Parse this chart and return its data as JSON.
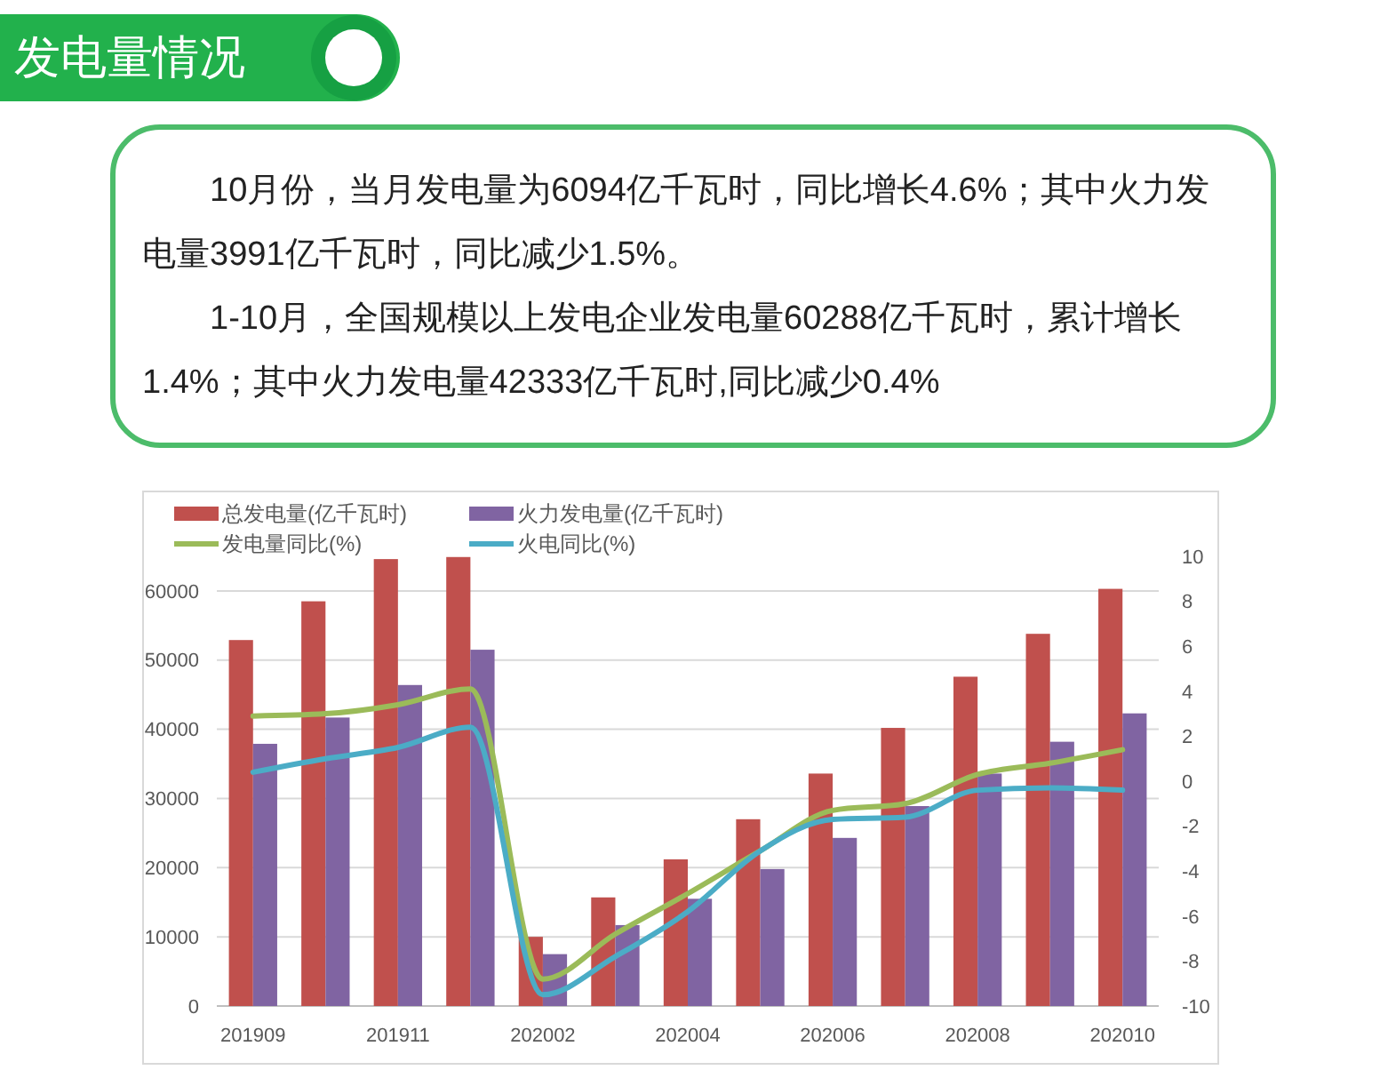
{
  "chart_data": {
    "type": "bar",
    "title": "发电量情况",
    "annotations": [
      "10月份，当月发电量为6094亿千瓦时，同比增长4.6%；其中火力发电量3991亿千瓦时，同比减少1.5%。",
      "1-10月，全国规模以上发电企业发电量60288亿千瓦时，累计增长1.4%；其中火力发电量42333亿千瓦时,同比减少0.4%"
    ],
    "categories": [
      "201909",
      null,
      "201911",
      null,
      "202002",
      null,
      "202004",
      null,
      "202006",
      null,
      "202008",
      null,
      "202010"
    ],
    "series": [
      {
        "name": "总发电量(亿千瓦时)",
        "color": "#c0504d",
        "values": [
          52900,
          58500,
          64600,
          64900,
          10000,
          15700,
          21200,
          27000,
          33600,
          40200,
          47600,
          53800,
          60300
        ]
      },
      {
        "name": "火力发电量(亿千瓦时)",
        "color": "#8064a2",
        "values": [
          37900,
          41700,
          46400,
          51500,
          7500,
          11700,
          15500,
          19800,
          24300,
          28900,
          33600,
          38200,
          42300
        ]
      },
      {
        "name": "发电量同比(%)",
        "type": "line",
        "axis": "y2",
        "color": "#9bbb59",
        "values": [
          2.9,
          3.0,
          3.4,
          4.1,
          -8.8,
          -6.8,
          -5.0,
          -3.1,
          -1.3,
          -1.0,
          0.3,
          0.8,
          1.4
        ]
      },
      {
        "name": "火电同比(%)",
        "type": "line",
        "axis": "y2",
        "color": "#4bacc6",
        "values": [
          0.4,
          1.0,
          1.5,
          2.4,
          -9.5,
          -7.8,
          -5.8,
          -3.1,
          -1.7,
          -1.6,
          -0.4,
          -0.3,
          -0.4
        ]
      }
    ],
    "ylim": [
      0,
      65000
    ],
    "yticks": [
      0,
      10000,
      20000,
      30000,
      40000,
      50000,
      60000
    ],
    "y2lim": [
      -10,
      10
    ],
    "y2ticks": [
      -10,
      -8,
      -6,
      -4,
      -2,
      0,
      2,
      4,
      6,
      8,
      10
    ],
    "grid": "y",
    "legend": "top"
  }
}
